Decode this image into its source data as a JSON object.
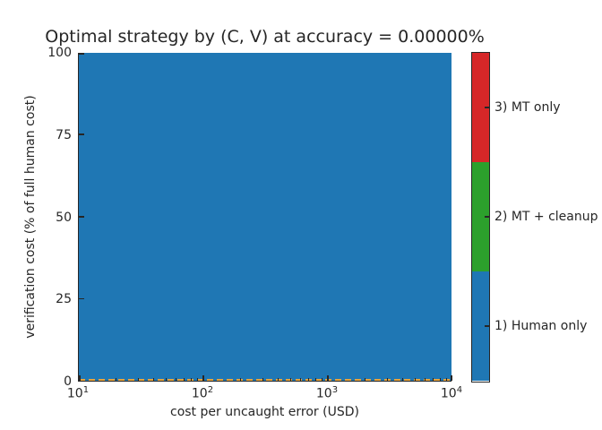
{
  "title": "Optimal strategy by (C, V) at accuracy = 0.00000%",
  "axes": {
    "x": {
      "label": "cost per uncaught error (USD)",
      "scale": "log",
      "ticks": [
        {
          "value": 10,
          "base": "10",
          "exp": "1"
        },
        {
          "value": 100,
          "base": "10",
          "exp": "2"
        },
        {
          "value": 1000,
          "base": "10",
          "exp": "3"
        },
        {
          "value": 10000,
          "base": "10",
          "exp": "4"
        }
      ]
    },
    "y": {
      "label": "verification cost (% of full human cost)",
      "scale": "linear",
      "ticks": [
        {
          "value": 0,
          "label": "0"
        },
        {
          "value": 25,
          "label": "25"
        },
        {
          "value": 50,
          "label": "50"
        },
        {
          "value": 75,
          "label": "75"
        },
        {
          "value": 100,
          "label": "100"
        }
      ]
    }
  },
  "plot": {
    "fill_color": "#1f77b4",
    "dashed_line_color": "#e8a33a",
    "spine_color": "#262626"
  },
  "colorbar": {
    "entries": [
      {
        "label": "3) MT only",
        "color": "#d62728"
      },
      {
        "label": "2) MT + cleanup",
        "color": "#2ca02c"
      },
      {
        "label": "1) Human only",
        "color": "#1f77b4"
      }
    ]
  },
  "chart_data": {
    "type": "heatmap",
    "title": "Optimal strategy by (C, V) at accuracy = 0.00000%",
    "xlabel": "cost per uncaught error (USD)",
    "ylabel": "verification cost (% of full human cost)",
    "x_scale": "log",
    "x_range": [
      10,
      10000
    ],
    "y_range": [
      0,
      100
    ],
    "x_ticks": [
      10,
      100,
      1000,
      10000
    ],
    "y_ticks": [
      0,
      25,
      50,
      75,
      100
    ],
    "categories": [
      {
        "value": 1,
        "label": "1) Human only",
        "color": "#1f77b4"
      },
      {
        "value": 2,
        "label": "2) MT + cleanup",
        "color": "#2ca02c"
      },
      {
        "value": 3,
        "label": "3) MT only",
        "color": "#d62728"
      }
    ],
    "grid_values": "uniform: category 1 (Human only) over the entire (C, V) domain",
    "annotations": [
      {
        "type": "line",
        "style": "dashed",
        "color": "#e8a33a",
        "y": 0,
        "note": "orange dashed boundary line along the bottom edge (y = 0)"
      }
    ],
    "legend_position": "colorbar-right",
    "grid": false
  }
}
